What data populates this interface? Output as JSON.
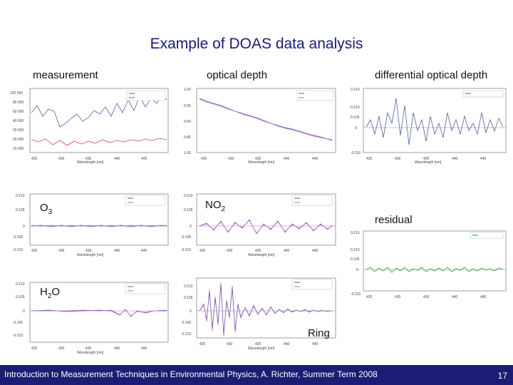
{
  "slide": {
    "title": "Example of DOAS data analysis",
    "labels": {
      "measurement": "measurement",
      "optical_depth": "optical depth",
      "differential": "differential optical depth",
      "o3": "O",
      "o3_sub": "3",
      "no2": "NO",
      "no2_sub": "2",
      "residual": "residual",
      "h2o_a": "H",
      "h2o_sub": "2",
      "h2o_b": "O",
      "ring": "Ring"
    },
    "footer": {
      "text": "Introduction to Measurement Techniques in Environmental Physics, A. Richter, Summer Term 2008",
      "page": "17"
    }
  },
  "colors": {
    "footer_bg": "#1c1c74",
    "title": "#1a1a7a",
    "measured": "#5560a0",
    "fit": "#d060d0",
    "red": "#d04848",
    "green": "#2a9a2a"
  }
}
